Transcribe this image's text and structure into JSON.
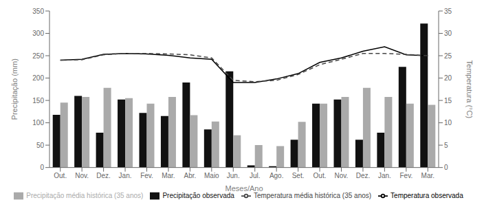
{
  "chart_data": {
    "type": "bar",
    "xlabel": "Meses/Ano",
    "ylabel": "Precipitação (mm)",
    "y2label": "Temperatura (°C)",
    "categories": [
      "Out.",
      "Nov.",
      "Dez.",
      "Jan.",
      "Fev.",
      "Mar.",
      "Abr.",
      "Maio",
      "Jun.",
      "Jul.",
      "Ago.",
      "Set.",
      "Out.",
      "Nov.",
      "Dez.",
      "Jan.",
      "Fev.",
      "Mar."
    ],
    "series": [
      {
        "name": "Precipitação observada",
        "type": "bar",
        "color": "#111111",
        "values": [
          118,
          160,
          78,
          152,
          122,
          115,
          190,
          85,
          215,
          5,
          3,
          62,
          143,
          152,
          62,
          78,
          225,
          322
        ]
      },
      {
        "name": "Precipitação média histórica (35 anos)",
        "type": "bar",
        "color": "#aaaaaa",
        "values": [
          145,
          158,
          178,
          155,
          143,
          158,
          117,
          103,
          72,
          50,
          48,
          102,
          143,
          158,
          178,
          158,
          143,
          140
        ]
      },
      {
        "name": "Temperatura observada",
        "type": "line",
        "axis": "y2",
        "color": "#000000",
        "line_style": "solid",
        "values": [
          24.0,
          24.2,
          25.3,
          25.5,
          25.4,
          25.1,
          24.5,
          24.2,
          19.0,
          19.0,
          19.8,
          21.0,
          23.5,
          24.5,
          26.0,
          27.0,
          25.2,
          25.0
        ]
      },
      {
        "name": "Temperatura média histórica (35 anos)",
        "type": "line",
        "axis": "y2",
        "color": "#444444",
        "line_style": "dashed",
        "values": [
          24.0,
          24.1,
          25.2,
          25.5,
          25.5,
          25.4,
          25.2,
          24.5,
          19.5,
          19.2,
          19.5,
          20.8,
          23.0,
          24.2,
          25.5,
          25.5,
          25.3,
          25.0
        ]
      }
    ],
    "ylim": [
      0,
      350
    ],
    "yticks": [
      0,
      50,
      100,
      150,
      200,
      250,
      300,
      350
    ],
    "y2lim": [
      0,
      35
    ],
    "y2ticks": [
      0,
      5,
      10,
      15,
      20,
      25,
      30,
      35
    ],
    "grid": false,
    "legend": "bottom"
  }
}
